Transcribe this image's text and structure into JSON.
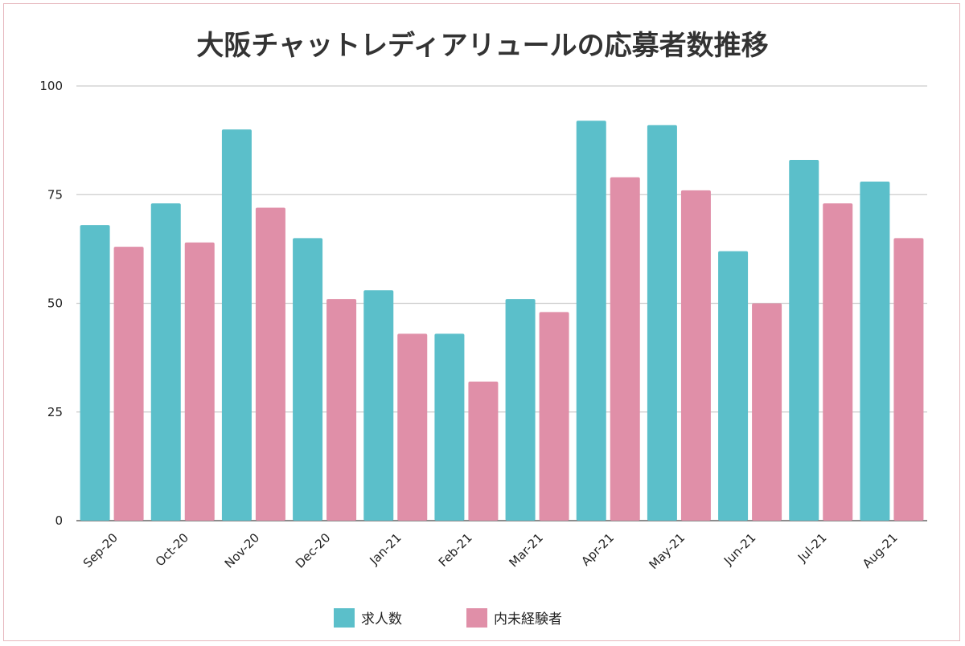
{
  "chart_data": {
    "type": "bar",
    "title": "大阪チャットレディアリュールの応募者数推移",
    "xlabel": "",
    "ylabel": "",
    "categories": [
      "Sep-20",
      "Oct-20",
      "Nov-20",
      "Dec-20",
      "Jan-21",
      "Feb-21",
      "Mar-21",
      "Apr-21",
      "May-21",
      "Jun-21",
      "Jul-21",
      "Aug-21"
    ],
    "series": [
      {
        "name": "求人数",
        "color": "#5bbfca",
        "values": [
          68,
          73,
          90,
          65,
          53,
          43,
          51,
          92,
          91,
          62,
          83,
          78
        ]
      },
      {
        "name": "内未経験者",
        "color": "#e08fa8",
        "values": [
          63,
          64,
          72,
          51,
          43,
          32,
          48,
          79,
          76,
          50,
          73,
          65
        ]
      }
    ],
    "ylim": [
      0,
      100
    ],
    "yticks": [
      0,
      25,
      50,
      75,
      100
    ],
    "grid": true,
    "legend": "bottom"
  }
}
